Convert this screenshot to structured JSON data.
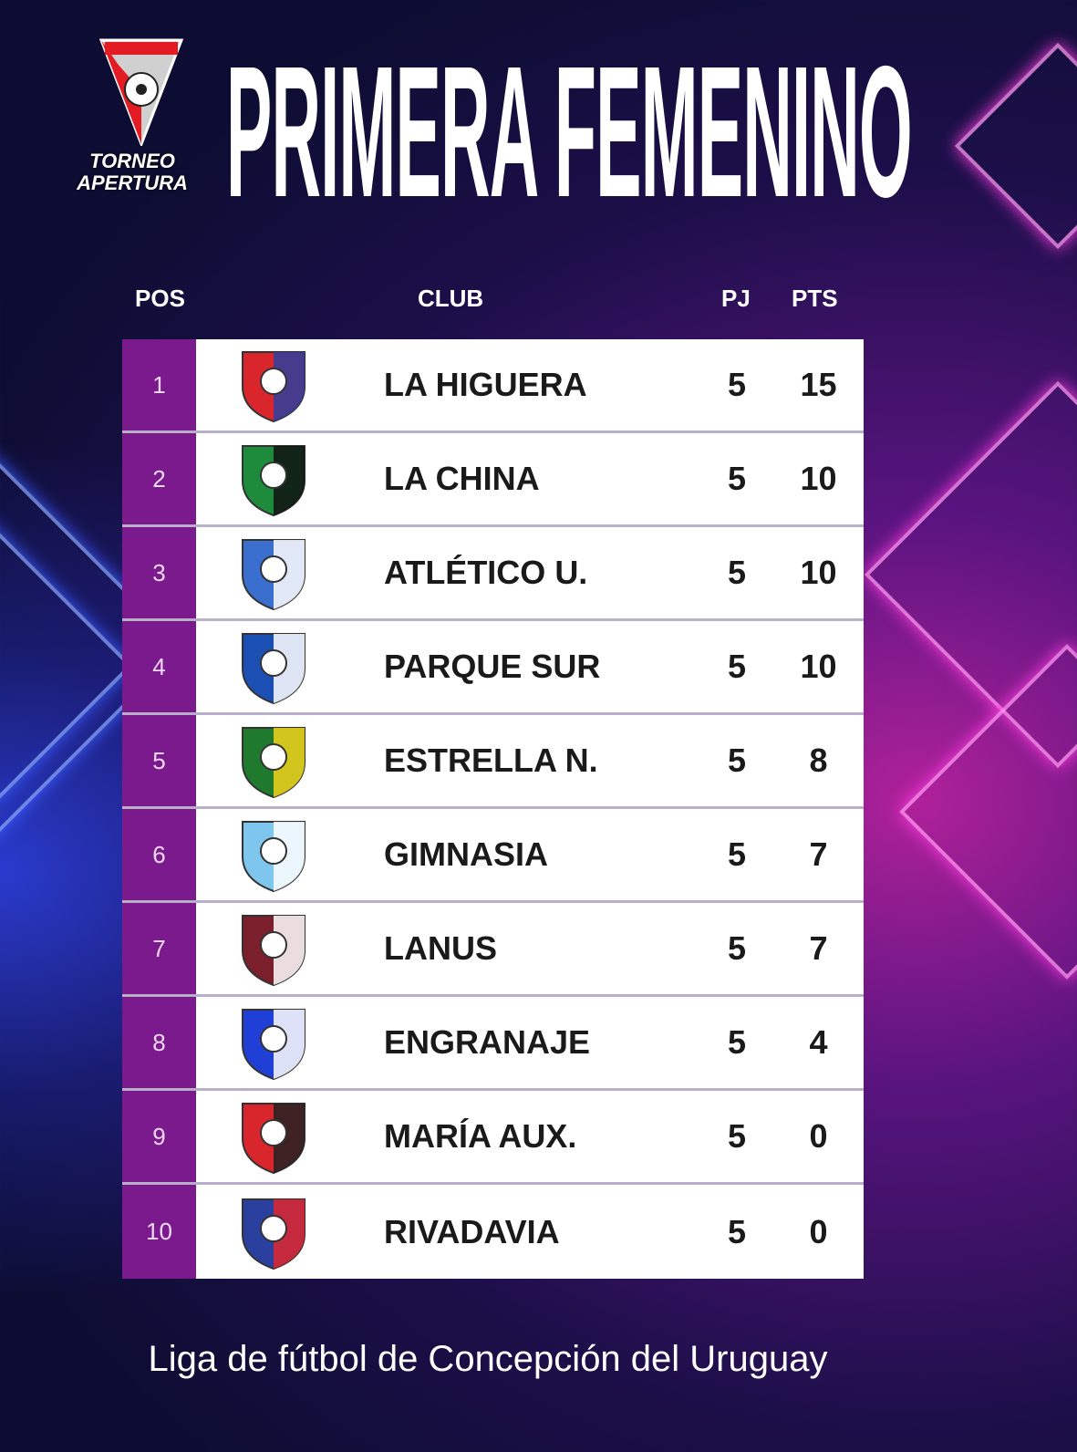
{
  "logo": {
    "line1": "TORNEO",
    "line2": "APERTURA",
    "colors": [
      "#e31b23",
      "#d0d0d0"
    ]
  },
  "title": "PRIMERA FEMENINO",
  "headers": {
    "pos": "POS",
    "club": "CLUB",
    "pj": "PJ",
    "pts": "PTS"
  },
  "rows": [
    {
      "pos": "1",
      "club": "LA HIGUERA",
      "pj": "5",
      "pts": "15",
      "crest": [
        "#d9262c",
        "#2b3f9e"
      ]
    },
    {
      "pos": "2",
      "club": "LA CHINA",
      "pj": "5",
      "pts": "10",
      "crest": [
        "#1d8a3c",
        "#111111"
      ]
    },
    {
      "pos": "3",
      "club": "ATLÉTICO U.",
      "pj": "5",
      "pts": "10",
      "crest": [
        "#3a6fd0",
        "#ffffff"
      ]
    },
    {
      "pos": "4",
      "club": "PARQUE SUR",
      "pj": "5",
      "pts": "10",
      "crest": [
        "#1b4fb3",
        "#ffffff"
      ]
    },
    {
      "pos": "5",
      "club": "ESTRELLA N.",
      "pj": "5",
      "pts": "8",
      "crest": [
        "#1f7a2e",
        "#f2d21b"
      ]
    },
    {
      "pos": "6",
      "club": "GIMNASIA",
      "pj": "5",
      "pts": "7",
      "crest": [
        "#7fc6ee",
        "#ffffff"
      ]
    },
    {
      "pos": "7",
      "club": "LANUS",
      "pj": "5",
      "pts": "7",
      "crest": [
        "#7a1f2b",
        "#ffffff"
      ]
    },
    {
      "pos": "8",
      "club": "ENGRANAJE",
      "pj": "5",
      "pts": "4",
      "crest": [
        "#1f3fd6",
        "#ffffff"
      ]
    },
    {
      "pos": "9",
      "club": "MARÍA AUX.",
      "pj": "5",
      "pts": "0",
      "crest": [
        "#d9262c",
        "#222222"
      ]
    },
    {
      "pos": "10",
      "club": "RIVADAVIA",
      "pj": "5",
      "pts": "0",
      "crest": [
        "#2b3f9e",
        "#e0262c"
      ]
    }
  ],
  "footer": "Liga de fútbol de Concepción del Uruguay"
}
